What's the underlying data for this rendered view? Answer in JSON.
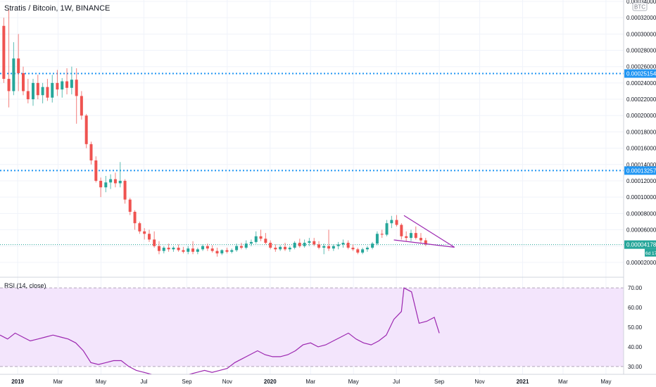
{
  "header": {
    "title": "Stratis / Bitcoin, 1W, BINANCE",
    "currency_badge": "BTC"
  },
  "price_axis": {
    "ticks": [
      "0.00034000",
      "0.00032000",
      "0.00030000",
      "0.00028000",
      "0.00026000",
      "0.00024000",
      "0.00022000",
      "0.00020000",
      "0.00018000",
      "0.00016000",
      "0.00014000",
      "0.00012000",
      "0.00010000",
      "0.00008000",
      "0.00006000",
      "0.00004000",
      "0.00002000"
    ],
    "current_price_label": "0.00004178",
    "countdown_label": "6d 17h",
    "level_labels": [
      "0.00025154",
      "0.00013257"
    ]
  },
  "rsi": {
    "label": "RSI (14, close)",
    "ticks": [
      "70.00",
      "60.00",
      "50.00",
      "40.00",
      "30.00"
    ]
  },
  "time_axis": {
    "labels": [
      "2019",
      "Mar",
      "May",
      "Jul",
      "Sep",
      "Nov",
      "2020",
      "Mar",
      "May",
      "Jul",
      "Sep",
      "Nov",
      "2021",
      "Mar",
      "May"
    ]
  },
  "colors": {
    "up": "#26a69a",
    "down": "#ef5350",
    "rsi_line": "#9c27b0",
    "rsi_band": "#f3e5fc",
    "level_line": "#2196f3",
    "wedge": "#9c27b0",
    "price_tag": "#26a69a"
  },
  "chart_data": [
    {
      "type": "candlestick",
      "title": "Stratis / Bitcoin, 1W, BINANCE",
      "y_unit": "BTC",
      "ylim": [
        3.5e-06,
        0.0003417
      ],
      "x_range": [
        2018.93,
        2021.4
      ],
      "horizontal_levels": [
        0.00025154,
        0.00013257
      ],
      "current_price": 4.178e-05,
      "trendlines": [
        {
          "x": [
            2020.53,
            2020.73
          ],
          "y": [
            7.75e-05,
            3.85e-05
          ]
        },
        {
          "x": [
            2020.49,
            2020.73
          ],
          "y": [
            4.75e-05,
            3.85e-05
          ]
        }
      ],
      "candles": [
        {
          "x": 2018.945,
          "o": 0.00031,
          "h": 0.00032,
          "l": 0.00024,
          "c": 0.000245
        },
        {
          "x": 2018.965,
          "o": 0.000245,
          "h": 0.00033,
          "l": 0.00021,
          "c": 0.00023
        },
        {
          "x": 2018.984,
          "o": 0.00023,
          "h": 0.00029,
          "l": 0.000225,
          "c": 0.00027
        },
        {
          "x": 2019.003,
          "o": 0.00027,
          "h": 0.0003,
          "l": 0.00023,
          "c": 0.000252
        },
        {
          "x": 2019.022,
          "o": 0.000252,
          "h": 0.00026,
          "l": 0.000225,
          "c": 0.00023
        },
        {
          "x": 2019.041,
          "o": 0.00023,
          "h": 0.000245,
          "l": 0.000215,
          "c": 0.00022
        },
        {
          "x": 2019.061,
          "o": 0.00022,
          "h": 0.000245,
          "l": 0.000212,
          "c": 0.00024
        },
        {
          "x": 2019.08,
          "o": 0.00024,
          "h": 0.00025,
          "l": 0.00022,
          "c": 0.000225
        },
        {
          "x": 2019.099,
          "o": 0.000225,
          "h": 0.00024,
          "l": 0.000215,
          "c": 0.000235
        },
        {
          "x": 2019.118,
          "o": 0.000235,
          "h": 0.000245,
          "l": 0.000218,
          "c": 0.000222
        },
        {
          "x": 2019.137,
          "o": 0.000222,
          "h": 0.00025,
          "l": 0.000216,
          "c": 0.00024
        },
        {
          "x": 2019.157,
          "o": 0.00024,
          "h": 0.000256,
          "l": 0.000224,
          "c": 0.000232
        },
        {
          "x": 2019.176,
          "o": 0.000232,
          "h": 0.000246,
          "l": 0.000222,
          "c": 0.000242
        },
        {
          "x": 2019.195,
          "o": 0.000242,
          "h": 0.000258,
          "l": 0.000226,
          "c": 0.000234
        },
        {
          "x": 2019.214,
          "o": 0.000234,
          "h": 0.00026,
          "l": 0.000226,
          "c": 0.000244
        },
        {
          "x": 2019.233,
          "o": 0.000244,
          "h": 0.000258,
          "l": 0.00019,
          "c": 0.000224
        },
        {
          "x": 2019.253,
          "o": 0.000224,
          "h": 0.00023,
          "l": 0.000195,
          "c": 0.0002
        },
        {
          "x": 2019.272,
          "o": 0.0002,
          "h": 0.000202,
          "l": 0.00016,
          "c": 0.000165
        },
        {
          "x": 2019.291,
          "o": 0.000165,
          "h": 0.000168,
          "l": 0.00014,
          "c": 0.000145
        },
        {
          "x": 2019.31,
          "o": 0.000145,
          "h": 0.00015,
          "l": 0.000118,
          "c": 0.00012
        },
        {
          "x": 2019.329,
          "o": 0.00012,
          "h": 0.000124,
          "l": 0.0001,
          "c": 0.000112
        },
        {
          "x": 2019.349,
          "o": 0.000112,
          "h": 0.000126,
          "l": 0.000106,
          "c": 0.000118
        },
        {
          "x": 2019.368,
          "o": 0.000118,
          "h": 0.000128,
          "l": 0.00011,
          "c": 0.000122
        },
        {
          "x": 2019.387,
          "o": 0.000122,
          "h": 0.00013,
          "l": 0.000112,
          "c": 0.000117
        },
        {
          "x": 2019.406,
          "o": 0.000117,
          "h": 0.000143,
          "l": 0.000112,
          "c": 0.00012
        },
        {
          "x": 2019.425,
          "o": 0.00012,
          "h": 0.000122,
          "l": 9.2e-05,
          "c": 9.7e-05
        },
        {
          "x": 2019.445,
          "o": 9.7e-05,
          "h": 9.9e-05,
          "l": 7.8e-05,
          "c": 8.2e-05
        },
        {
          "x": 2019.464,
          "o": 8.2e-05,
          "h": 8.4e-05,
          "l": 6e-05,
          "c": 6.8e-05
        },
        {
          "x": 2019.483,
          "o": 6.8e-05,
          "h": 7e-05,
          "l": 5.5e-05,
          "c": 5.8e-05
        },
        {
          "x": 2019.502,
          "o": 5.8e-05,
          "h": 6.2e-05,
          "l": 4.8e-05,
          "c": 5.5e-05
        },
        {
          "x": 2019.521,
          "o": 5.5e-05,
          "h": 6e-05,
          "l": 4.5e-05,
          "c": 4.8e-05
        },
        {
          "x": 2019.541,
          "o": 4.8e-05,
          "h": 5.8e-05,
          "l": 3.8e-05,
          "c": 4e-05
        },
        {
          "x": 2019.56,
          "o": 4e-05,
          "h": 4.6e-05,
          "l": 3e-05,
          "c": 3.4e-05
        },
        {
          "x": 2019.579,
          "o": 3.4e-05,
          "h": 4e-05,
          "l": 3.1e-05,
          "c": 3.8e-05
        },
        {
          "x": 2019.598,
          "o": 3.8e-05,
          "h": 4.3e-05,
          "l": 3.3e-05,
          "c": 3.6e-05
        },
        {
          "x": 2019.617,
          "o": 3.6e-05,
          "h": 4e-05,
          "l": 3.3e-05,
          "c": 3.8e-05
        },
        {
          "x": 2019.637,
          "o": 3.8e-05,
          "h": 4.2e-05,
          "l": 3.3e-05,
          "c": 3.5e-05
        },
        {
          "x": 2019.656,
          "o": 3.5e-05,
          "h": 3.9e-05,
          "l": 3.1e-05,
          "c": 3.3e-05
        },
        {
          "x": 2019.675,
          "o": 3.3e-05,
          "h": 4e-05,
          "l": 3e-05,
          "c": 3.7e-05
        },
        {
          "x": 2019.694,
          "o": 3.7e-05,
          "h": 4.6e-05,
          "l": 3e-05,
          "c": 3.3e-05
        },
        {
          "x": 2019.713,
          "o": 3.3e-05,
          "h": 3.8e-05,
          "l": 3e-05,
          "c": 3.6e-05
        },
        {
          "x": 2019.733,
          "o": 3.6e-05,
          "h": 4.2e-05,
          "l": 3.4e-05,
          "c": 4e-05
        },
        {
          "x": 2019.752,
          "o": 4e-05,
          "h": 4.3e-05,
          "l": 3.4e-05,
          "c": 3.7e-05
        },
        {
          "x": 2019.771,
          "o": 3.7e-05,
          "h": 4.1e-05,
          "l": 3.2e-05,
          "c": 3.4e-05
        },
        {
          "x": 2019.79,
          "o": 3.4e-05,
          "h": 3.8e-05,
          "l": 2.7e-05,
          "c": 3.1e-05
        },
        {
          "x": 2019.809,
          "o": 3.1e-05,
          "h": 3.6e-05,
          "l": 2.9e-05,
          "c": 3.5e-05
        },
        {
          "x": 2019.829,
          "o": 3.5e-05,
          "h": 3.8e-05,
          "l": 3.1e-05,
          "c": 3.3e-05
        },
        {
          "x": 2019.848,
          "o": 3.3e-05,
          "h": 3.7e-05,
          "l": 3.1e-05,
          "c": 3.5e-05
        },
        {
          "x": 2019.867,
          "o": 3.5e-05,
          "h": 4.3e-05,
          "l": 3.3e-05,
          "c": 4e-05
        },
        {
          "x": 2019.886,
          "o": 4e-05,
          "h": 4.4e-05,
          "l": 3.6e-05,
          "c": 3.8e-05
        },
        {
          "x": 2019.905,
          "o": 3.8e-05,
          "h": 4.7e-05,
          "l": 3.6e-05,
          "c": 4.3e-05
        },
        {
          "x": 2019.925,
          "o": 4.3e-05,
          "h": 4.8e-05,
          "l": 4e-05,
          "c": 4.5e-05
        },
        {
          "x": 2019.944,
          "o": 4.5e-05,
          "h": 5.8e-05,
          "l": 4.3e-05,
          "c": 5.2e-05
        },
        {
          "x": 2019.963,
          "o": 5.2e-05,
          "h": 6e-05,
          "l": 4.6e-05,
          "c": 4.9e-05
        },
        {
          "x": 2019.982,
          "o": 4.9e-05,
          "h": 5.6e-05,
          "l": 4.2e-05,
          "c": 4.4e-05
        },
        {
          "x": 2020.001,
          "o": 4.4e-05,
          "h": 4.7e-05,
          "l": 3.6e-05,
          "c": 3.8e-05
        },
        {
          "x": 2020.021,
          "o": 3.8e-05,
          "h": 4.2e-05,
          "l": 3.3e-05,
          "c": 3.6e-05
        },
        {
          "x": 2020.04,
          "o": 3.6e-05,
          "h": 4.1e-05,
          "l": 3.4e-05,
          "c": 3.9e-05
        },
        {
          "x": 2020.059,
          "o": 3.9e-05,
          "h": 4.4e-05,
          "l": 3.4e-05,
          "c": 3.6e-05
        },
        {
          "x": 2020.078,
          "o": 3.6e-05,
          "h": 4e-05,
          "l": 3.3e-05,
          "c": 3.8e-05
        },
        {
          "x": 2020.097,
          "o": 3.8e-05,
          "h": 4.6e-05,
          "l": 3.6e-05,
          "c": 4.4e-05
        },
        {
          "x": 2020.117,
          "o": 4.4e-05,
          "h": 4.9e-05,
          "l": 3.8e-05,
          "c": 4e-05
        },
        {
          "x": 2020.136,
          "o": 4e-05,
          "h": 4.8e-05,
          "l": 3.8e-05,
          "c": 4.4e-05
        },
        {
          "x": 2020.155,
          "o": 4.4e-05,
          "h": 5e-05,
          "l": 4e-05,
          "c": 4.6e-05
        },
        {
          "x": 2020.174,
          "o": 4.6e-05,
          "h": 5e-05,
          "l": 4e-05,
          "c": 4.2e-05
        },
        {
          "x": 2020.193,
          "o": 4.2e-05,
          "h": 4.6e-05,
          "l": 3.6e-05,
          "c": 3.8e-05
        },
        {
          "x": 2020.213,
          "o": 3.8e-05,
          "h": 4.3e-05,
          "l": 3e-05,
          "c": 4e-05
        },
        {
          "x": 2020.232,
          "o": 4e-05,
          "h": 6e-05,
          "l": 3.4e-05,
          "c": 3.7e-05
        },
        {
          "x": 2020.251,
          "o": 3.7e-05,
          "h": 4.2e-05,
          "l": 3.4e-05,
          "c": 4e-05
        },
        {
          "x": 2020.27,
          "o": 4e-05,
          "h": 4.5e-05,
          "l": 3.6e-05,
          "c": 4.2e-05
        },
        {
          "x": 2020.289,
          "o": 4.2e-05,
          "h": 4.8e-05,
          "l": 3.8e-05,
          "c": 4.4e-05
        },
        {
          "x": 2020.309,
          "o": 4.4e-05,
          "h": 4.7e-05,
          "l": 3.6e-05,
          "c": 3.8e-05
        },
        {
          "x": 2020.328,
          "o": 3.8e-05,
          "h": 4.2e-05,
          "l": 3.4e-05,
          "c": 3.6e-05
        },
        {
          "x": 2020.347,
          "o": 3.6e-05,
          "h": 3.8e-05,
          "l": 3e-05,
          "c": 3.2e-05
        },
        {
          "x": 2020.366,
          "o": 3.2e-05,
          "h": 3.8e-05,
          "l": 3e-05,
          "c": 3.6e-05
        },
        {
          "x": 2020.385,
          "o": 3.6e-05,
          "h": 4e-05,
          "l": 3.3e-05,
          "c": 3.8e-05
        },
        {
          "x": 2020.405,
          "o": 3.8e-05,
          "h": 4.5e-05,
          "l": 3.6e-05,
          "c": 4.3e-05
        },
        {
          "x": 2020.424,
          "o": 4.3e-05,
          "h": 5.8e-05,
          "l": 4.1e-05,
          "c": 5.5e-05
        },
        {
          "x": 2020.443,
          "o": 5.5e-05,
          "h": 6e-05,
          "l": 5e-05,
          "c": 5.4e-05
        },
        {
          "x": 2020.462,
          "o": 5.4e-05,
          "h": 7.2e-05,
          "l": 5.2e-05,
          "c": 6.8e-05
        },
        {
          "x": 2020.481,
          "o": 6.8e-05,
          "h": 7.7e-05,
          "l": 6.2e-05,
          "c": 7.2e-05
        },
        {
          "x": 2020.501,
          "o": 7.2e-05,
          "h": 7.8e-05,
          "l": 6.4e-05,
          "c": 6.6e-05
        },
        {
          "x": 2020.52,
          "o": 6.6e-05,
          "h": 6.8e-05,
          "l": 4.8e-05,
          "c": 5.2e-05
        },
        {
          "x": 2020.539,
          "o": 5.2e-05,
          "h": 5.8e-05,
          "l": 4.6e-05,
          "c": 5e-05
        },
        {
          "x": 2020.558,
          "o": 5e-05,
          "h": 6e-05,
          "l": 4.6e-05,
          "c": 5.6e-05
        },
        {
          "x": 2020.577,
          "o": 5.6e-05,
          "h": 6.4e-05,
          "l": 4.8e-05,
          "c": 5e-05
        },
        {
          "x": 2020.597,
          "o": 5e-05,
          "h": 5.6e-05,
          "l": 4.4e-05,
          "c": 4.7e-05
        },
        {
          "x": 2020.616,
          "o": 4.7e-05,
          "h": 5e-05,
          "l": 4e-05,
          "c": 4.2e-05
        }
      ]
    },
    {
      "type": "line",
      "title": "RSI (14, close)",
      "ylim": [
        26,
        74
      ],
      "band": [
        30,
        70
      ],
      "x_range": [
        2018.93,
        2021.4
      ],
      "series": [
        {
          "x": [
            2018.93,
            2018.96,
            2018.99,
            2019.02,
            2019.05,
            2019.08,
            2019.11,
            2019.14,
            2019.17,
            2019.2,
            2019.23,
            2019.26,
            2019.29,
            2019.32,
            2019.35,
            2019.38,
            2019.41,
            2019.44,
            2019.47,
            2019.5,
            2019.53,
            2019.56,
            2019.59,
            2019.62,
            2019.65,
            2019.68,
            2019.71,
            2019.74,
            2019.77,
            2019.8,
            2019.83,
            2019.86,
            2019.89,
            2019.92,
            2019.95,
            2019.98,
            2020.01,
            2020.04,
            2020.07,
            2020.1,
            2020.13,
            2020.16,
            2020.19,
            2020.22,
            2020.25,
            2020.28,
            2020.31,
            2020.34,
            2020.37,
            2020.4,
            2020.43,
            2020.46,
            2020.49,
            2020.52,
            2020.53,
            2020.56,
            2020.59,
            2020.62,
            2020.65,
            2020.67
          ],
          "values": [
            46,
            44,
            47,
            45,
            43,
            44,
            45,
            46,
            45,
            44,
            42,
            38,
            32,
            31,
            32,
            33,
            33,
            30,
            28,
            27,
            26,
            25,
            25,
            24,
            25,
            26,
            27,
            28,
            27,
            28,
            29,
            32,
            34,
            36,
            38,
            36,
            35,
            35,
            36,
            38,
            41,
            42,
            40,
            41,
            43,
            45,
            47,
            44,
            42,
            41,
            43,
            46,
            54,
            58,
            70,
            68,
            52,
            53,
            55,
            47
          ]
        }
      ]
    }
  ]
}
